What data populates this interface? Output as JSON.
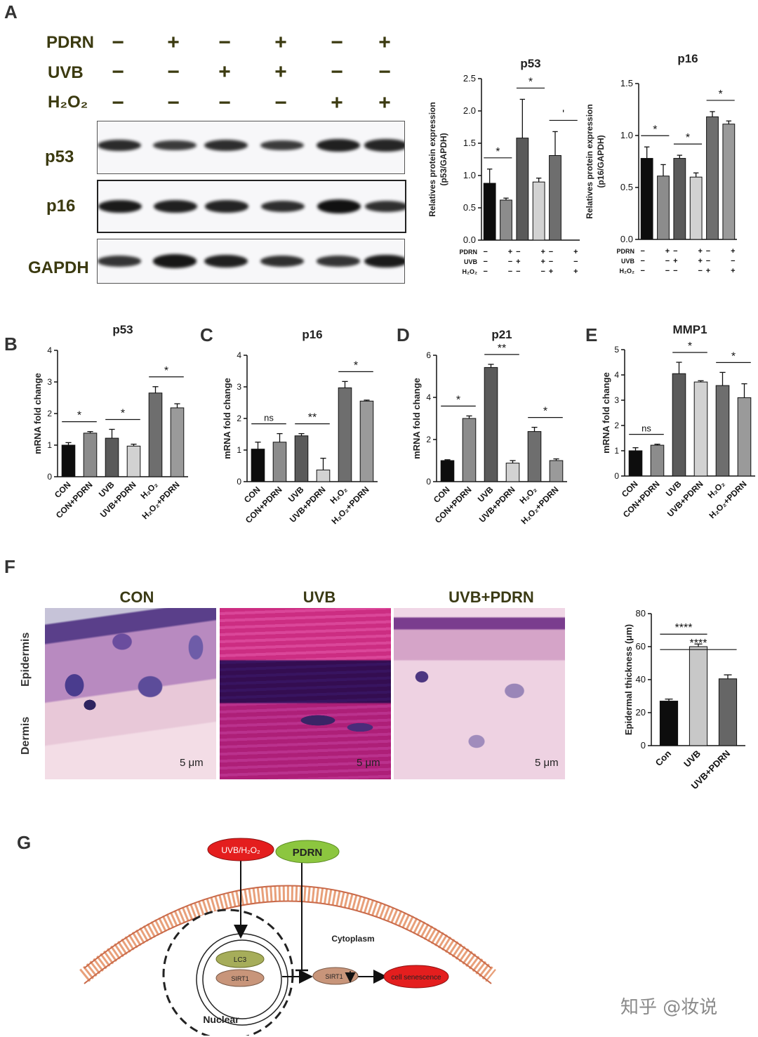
{
  "panels": {
    "A": "A",
    "B": "B",
    "C": "C",
    "D": "D",
    "E": "E",
    "F": "F",
    "G": "G"
  },
  "blot": {
    "conditions": [
      {
        "label": "PDRN",
        "signs": [
          "−",
          "+",
          "−",
          "+",
          "−",
          "+"
        ]
      },
      {
        "label": "UVB",
        "signs": [
          "−",
          "−",
          "+",
          "+",
          "−",
          "−"
        ]
      },
      {
        "label": "H₂O₂",
        "signs": [
          "−",
          "−",
          "−",
          "−",
          "+",
          "+"
        ]
      }
    ],
    "rows": [
      {
        "label": "p53",
        "intensity": [
          0.75,
          0.6,
          0.72,
          0.6,
          0.85,
          0.8
        ]
      },
      {
        "label": "p16",
        "intensity": [
          0.9,
          0.85,
          0.82,
          0.72,
          1.0,
          0.7
        ]
      },
      {
        "label": "GAPDH",
        "intensity": [
          0.65,
          0.95,
          0.85,
          0.7,
          0.65,
          0.9
        ]
      }
    ]
  },
  "chart_data": [
    {
      "id": "A-p53",
      "type": "bar",
      "title": "p53",
      "ylabel": "Relatives protein expression\n(p53/GAPDH)",
      "ylim": [
        0,
        2.5
      ],
      "yticks": [
        "0.0",
        "0.5",
        "1.0",
        "1.5",
        "2.0",
        "2.5"
      ],
      "values": [
        0.88,
        0.62,
        1.58,
        0.9,
        1.31,
        0
      ],
      "errors": [
        0.22,
        0.03,
        0.6,
        0.06,
        0.37,
        0
      ],
      "colors": [
        "#0d0d0d",
        "#8c8c8c",
        "#5a5a5a",
        "#d2d2d2",
        "#6e6e6e",
        "#9a9a9a"
      ],
      "sig": [
        {
          "a": 0,
          "b": 1,
          "label": "*"
        },
        {
          "a": 2,
          "b": 3,
          "label": "*"
        },
        {
          "a": 4,
          "b": 5,
          "label": "'"
        }
      ],
      "cond_rows": [
        {
          "label": "PDRN",
          "signs": [
            "−",
            "+",
            "−",
            "+",
            "−",
            "+"
          ]
        },
        {
          "label": "UVB",
          "signs": [
            "−",
            "−",
            "+",
            "+",
            "−",
            "−"
          ]
        },
        {
          "label": "H₂O₂",
          "signs": [
            "−",
            "−",
            "−",
            "−",
            "+",
            "+"
          ]
        }
      ]
    },
    {
      "id": "A-p16",
      "type": "bar",
      "title": "p16",
      "ylabel": "Relatives protein expression\n(p16/GAPDH)",
      "ylim": [
        0,
        1.5
      ],
      "yticks": [
        "0.0",
        "0.5",
        "1.0",
        "1.5"
      ],
      "values": [
        0.78,
        0.61,
        0.78,
        0.6,
        1.18,
        1.11
      ],
      "errors": [
        0.11,
        0.11,
        0.03,
        0.04,
        0.05,
        0.03
      ],
      "colors": [
        "#0d0d0d",
        "#8c8c8c",
        "#5a5a5a",
        "#d2d2d2",
        "#6e6e6e",
        "#9a9a9a"
      ],
      "sig": [
        {
          "a": 0,
          "b": 1,
          "label": "*"
        },
        {
          "a": 2,
          "b": 3,
          "label": "*"
        },
        {
          "a": 4,
          "b": 5,
          "label": "*"
        }
      ],
      "cond_rows": [
        {
          "label": "PDRN",
          "signs": [
            "−",
            "+",
            "−",
            "+",
            "−",
            "+"
          ]
        },
        {
          "label": "UVB",
          "signs": [
            "−",
            "−",
            "+",
            "+",
            "−",
            "−"
          ]
        },
        {
          "label": "H₂O₂",
          "signs": [
            "−",
            "−",
            "−",
            "−",
            "+",
            "+"
          ]
        }
      ]
    },
    {
      "id": "B",
      "type": "bar",
      "title": "p53",
      "ylabel": "mRNA fold change",
      "ylim": [
        0,
        4
      ],
      "yticks": [
        "0",
        "1",
        "2",
        "3",
        "4"
      ],
      "categories": [
        "CON",
        "CON+PDRN",
        "UVB",
        "UVB+PDRN",
        "H₂O₂",
        "H₂O₂+PDRN"
      ],
      "values": [
        1.0,
        1.38,
        1.22,
        0.97,
        2.65,
        2.18
      ],
      "errors": [
        0.08,
        0.05,
        0.28,
        0.06,
        0.2,
        0.13
      ],
      "colors": [
        "#0d0d0d",
        "#8c8c8c",
        "#5a5a5a",
        "#d2d2d2",
        "#6e6e6e",
        "#9a9a9a"
      ],
      "sig": [
        {
          "a": 0,
          "b": 1,
          "label": "*"
        },
        {
          "a": 2,
          "b": 3,
          "label": "*"
        },
        {
          "a": 4,
          "b": 5,
          "label": "*"
        }
      ]
    },
    {
      "id": "C",
      "type": "bar",
      "title": "p16",
      "ylabel": "mRNA fold change",
      "ylim": [
        0,
        4
      ],
      "yticks": [
        "0",
        "1",
        "2",
        "3",
        "4"
      ],
      "categories": [
        "CON",
        "CON+PDRN",
        "UVB",
        "UVB+PDRN",
        "H₂O₂",
        "H₂O₂+PDRN"
      ],
      "values": [
        1.03,
        1.25,
        1.45,
        0.37,
        2.97,
        2.55
      ],
      "errors": [
        0.22,
        0.27,
        0.07,
        0.37,
        0.2,
        0.03
      ],
      "colors": [
        "#0d0d0d",
        "#8c8c8c",
        "#5a5a5a",
        "#d2d2d2",
        "#6e6e6e",
        "#9a9a9a"
      ],
      "sig": [
        {
          "a": 0,
          "b": 1,
          "label": "ns"
        },
        {
          "a": 2,
          "b": 3,
          "label": "**"
        },
        {
          "a": 4,
          "b": 5,
          "label": "*"
        }
      ]
    },
    {
      "id": "D",
      "type": "bar",
      "title": "p21",
      "ylabel": "mRNA fold change",
      "ylim": [
        0,
        6
      ],
      "yticks": [
        "0",
        "2",
        "4",
        "6"
      ],
      "categories": [
        "CON",
        "CON+PDRN",
        "UVB",
        "UVB+PDRN",
        "H₂O₂",
        "H₂O₂+PDRN"
      ],
      "values": [
        1.0,
        3.0,
        5.42,
        0.88,
        2.38,
        1.0
      ],
      "errors": [
        0.04,
        0.12,
        0.15,
        0.12,
        0.2,
        0.08
      ],
      "colors": [
        "#0d0d0d",
        "#8c8c8c",
        "#5a5a5a",
        "#d2d2d2",
        "#6e6e6e",
        "#9a9a9a"
      ],
      "sig": [
        {
          "a": 0,
          "b": 1,
          "label": "*"
        },
        {
          "a": 2,
          "b": 3,
          "label": "**"
        },
        {
          "a": 4,
          "b": 5,
          "label": "*"
        }
      ]
    },
    {
      "id": "E",
      "type": "bar",
      "title": "MMP1",
      "ylabel": "mRNA fold change",
      "ylim": [
        0,
        5
      ],
      "yticks": [
        "0",
        "1",
        "2",
        "3",
        "4",
        "5"
      ],
      "categories": [
        "CON",
        "CON+PDRN",
        "UVB",
        "UVB+PDRN",
        "H₂O₂",
        "H₂O₂+PDRN"
      ],
      "values": [
        1.0,
        1.22,
        4.05,
        3.72,
        3.58,
        3.1
      ],
      "errors": [
        0.12,
        0.04,
        0.45,
        0.05,
        0.52,
        0.55
      ],
      "colors": [
        "#0d0d0d",
        "#8c8c8c",
        "#5a5a5a",
        "#d2d2d2",
        "#6e6e6e",
        "#9a9a9a"
      ],
      "sig": [
        {
          "a": 0,
          "b": 1,
          "label": "ns"
        },
        {
          "a": 2,
          "b": 3,
          "label": "*"
        },
        {
          "a": 4,
          "b": 5,
          "label": "*"
        }
      ]
    },
    {
      "id": "F",
      "type": "bar",
      "title": "",
      "ylabel": "Epidermal thickness (μm)",
      "ylim": [
        0,
        80
      ],
      "yticks": [
        "0",
        "20",
        "40",
        "60",
        "80"
      ],
      "categories": [
        "Con",
        "UVB",
        "UVB+PDRN"
      ],
      "values": [
        27,
        60,
        40.5
      ],
      "errors": [
        1.2,
        1.6,
        2.4
      ],
      "colors": [
        "#0d0d0d",
        "#c8c8c8",
        "#666666"
      ],
      "sig": [
        {
          "a": 0,
          "b": 1,
          "label": "****"
        },
        {
          "a": 0,
          "b": 2,
          "label": "****"
        }
      ]
    }
  ],
  "histology": {
    "titles": [
      "CON",
      "UVB",
      "UVB+PDRN"
    ],
    "scale": "5 μm",
    "side_labels": [
      "Epidermis",
      "Dermis"
    ]
  },
  "schematic": {
    "uvb_h2o2": "UVB/H₂O₂",
    "pdrn": "PDRN",
    "cytoplasm": "Cytoplasm",
    "nuclear": "Nuclear",
    "lc3": "LC3",
    "sirt1_nuc": "SIRT1",
    "sirt1_cyto": "SIRT1",
    "senescence": "cell senescence",
    "colors": {
      "red": "#e41e1e",
      "green": "#8cc63f",
      "olive": "#a6ad5a",
      "brown": "#c8957a",
      "membrane": "#e8a07a"
    }
  },
  "watermark": "知乎 @妆说"
}
